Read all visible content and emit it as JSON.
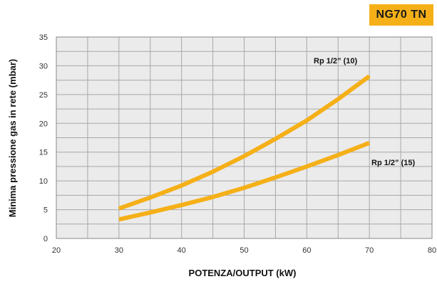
{
  "badge_label": "NG70 TN",
  "chart_data": {
    "type": "line",
    "title": "",
    "xlabel": "POTENZA/OUTPUT (kW)",
    "ylabel": "Minima pressione gas in rete (mbar)",
    "xlim": [
      20,
      80
    ],
    "ylim": [
      0,
      35
    ],
    "x_ticks": [
      20,
      30,
      40,
      50,
      60,
      70,
      80
    ],
    "y_ticks": [
      0,
      5,
      10,
      15,
      20,
      25,
      30,
      35
    ],
    "grid": true,
    "line_color": "#f5b018",
    "grid_color": "#a8a8a8",
    "series": [
      {
        "name": "Rp 1/2” (10)",
        "x": [
          30,
          35,
          40,
          45,
          50,
          55,
          60,
          65,
          70
        ],
        "y": [
          5.2,
          7.1,
          9.2,
          11.6,
          14.3,
          17.3,
          20.5,
          24.2,
          28.2
        ]
      },
      {
        "name": "Rp 1/2” (15)",
        "x": [
          30,
          35,
          40,
          45,
          50,
          55,
          60,
          65,
          70
        ],
        "y": [
          3.3,
          4.5,
          5.8,
          7.2,
          8.8,
          10.6,
          12.5,
          14.5,
          16.6
        ]
      }
    ]
  }
}
